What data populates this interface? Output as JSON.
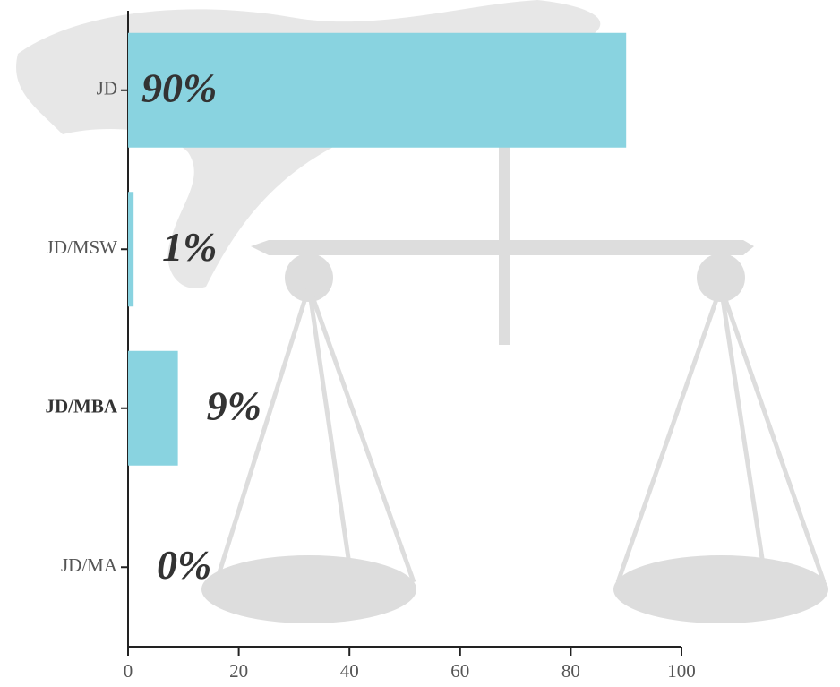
{
  "chart_data": {
    "type": "bar",
    "orientation": "horizontal",
    "categories": [
      "JD",
      "JD/MSW",
      "JD/MBA",
      "JD/MA"
    ],
    "values": [
      90,
      1,
      9,
      0
    ],
    "value_labels": [
      "90%",
      "1%",
      "9%",
      "0%"
    ],
    "color": "#89d3e0",
    "xlim": [
      0,
      100
    ],
    "xticks": [
      0,
      20,
      40,
      60,
      80,
      100
    ]
  }
}
